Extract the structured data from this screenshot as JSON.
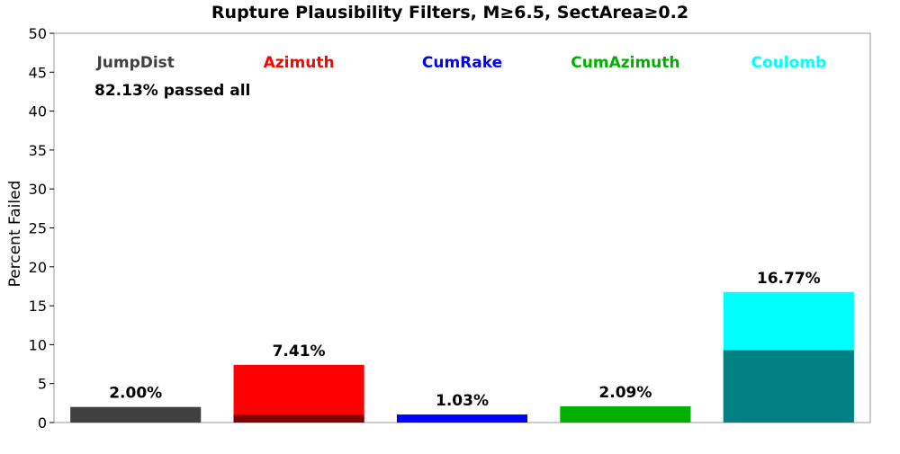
{
  "chart_data": {
    "type": "bar",
    "title": "Rupture Plausibility Filters, M≥6.5, SectArea≥0.2",
    "xlabel": "",
    "ylabel": "Percent Failed",
    "ylim": [
      0,
      50
    ],
    "yticks": [
      0,
      5,
      10,
      15,
      20,
      25,
      30,
      35,
      40,
      45,
      50
    ],
    "grid": false,
    "legend_position": "top",
    "annotation": "82.13% passed all",
    "categories": [
      "JumpDist",
      "Azimuth",
      "CumRake",
      "CumAzimuth",
      "Coulomb"
    ],
    "values": [
      2.0,
      7.41,
      1.03,
      2.09,
      16.77
    ],
    "inner_values": [
      0,
      1.0,
      0,
      0,
      9.3
    ],
    "value_labels": [
      "2.00%",
      "7.41%",
      "1.03%",
      "2.09%",
      "16.77%"
    ],
    "colors": [
      "#404040",
      "#ff0000",
      "#0000ff",
      "#00b000",
      "#00ffff"
    ],
    "inner_colors": [
      "#404040",
      "#800000",
      "#0000ff",
      "#00b000",
      "#008080"
    ]
  }
}
